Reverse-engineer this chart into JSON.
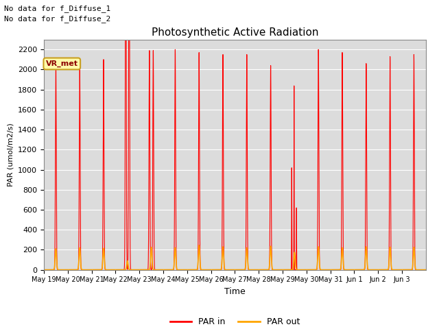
{
  "title": "Photosynthetic Active Radiation",
  "ylabel": "PAR (umol/m2/s)",
  "xlabel": "Time",
  "ylim": [
    0,
    2300
  ],
  "legend_label": "VR_met",
  "line1_label": "PAR in",
  "line2_label": "PAR out",
  "line1_color": "#FF0000",
  "line2_color": "#FFA500",
  "background_color": "#DCDCDC",
  "annotation1": "No data for f_Diffuse_1",
  "annotation2": "No data for f_Diffuse_2",
  "xtick_labels": [
    "May 19",
    "May 20",
    "May 21",
    "May 22",
    "May 23",
    "May 24",
    "May 25",
    "May 26",
    "May 27",
    "May 28",
    "May 29",
    "May 30",
    "May 31",
    "Jun 1",
    "Jun 2",
    "Jun 3"
  ],
  "ytick_labels": [
    0,
    200,
    400,
    600,
    800,
    1000,
    1200,
    1400,
    1600,
    1800,
    2000,
    2200
  ],
  "day_peaks_in": [
    2090,
    2090,
    2100,
    2130,
    2190,
    2200,
    2170,
    2150,
    2150,
    2040,
    1840,
    2200,
    2170,
    2060,
    2130,
    2150
  ],
  "day_peaks_out": [
    210,
    220,
    215,
    90,
    225,
    220,
    245,
    230,
    220,
    235,
    175,
    230,
    220,
    230,
    225,
    225
  ],
  "total_days": 16,
  "sigma_in": 0.018,
  "sigma_out": 0.028
}
